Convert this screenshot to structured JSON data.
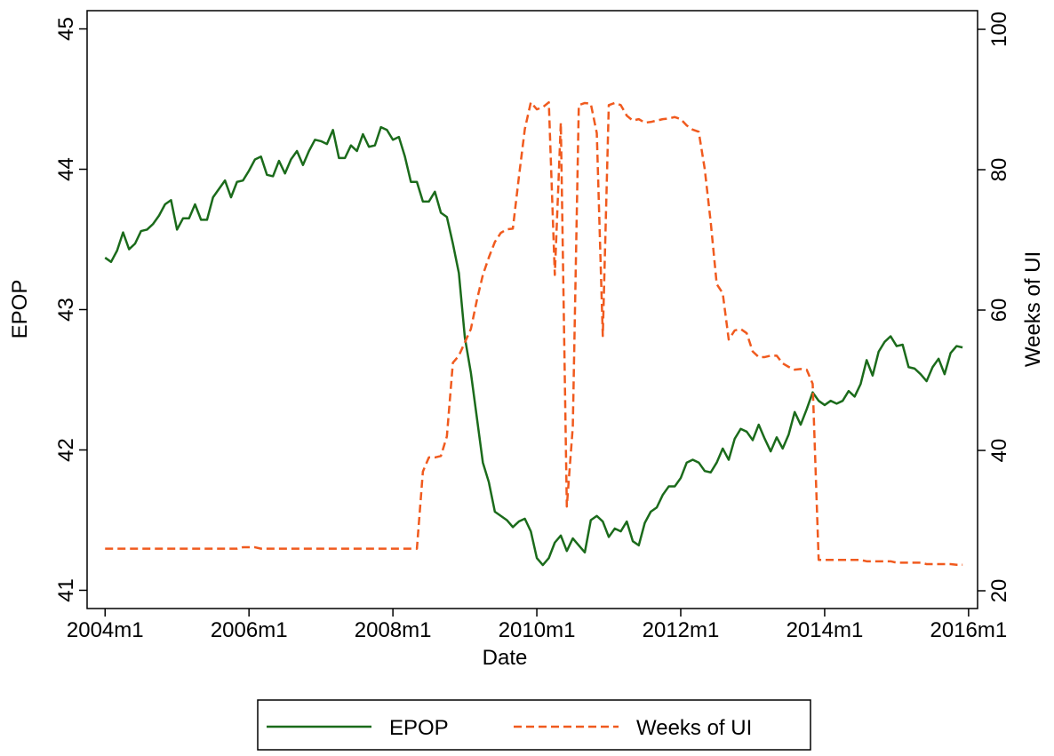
{
  "chart_data": {
    "type": "line",
    "x_label": "Date",
    "y_label": "EPOP",
    "y2_label": "Weeks of UI",
    "x": [
      528,
      529,
      530,
      531,
      532,
      533,
      534,
      535,
      536,
      537,
      538,
      539,
      540,
      541,
      542,
      543,
      544,
      545,
      546,
      547,
      548,
      549,
      550,
      551,
      552,
      553,
      554,
      555,
      556,
      557,
      558,
      559,
      560,
      561,
      562,
      563,
      564,
      565,
      566,
      567,
      568,
      569,
      570,
      571,
      572,
      573,
      574,
      575,
      576,
      577,
      578,
      579,
      580,
      581,
      582,
      583,
      584,
      585,
      586,
      587,
      588,
      589,
      590,
      591,
      592,
      593,
      594,
      595,
      596,
      597,
      598,
      599,
      600,
      601,
      602,
      603,
      604,
      605,
      606,
      607,
      608,
      609,
      610,
      611,
      612,
      613,
      614,
      615,
      616,
      617,
      618,
      619,
      620,
      621,
      622,
      623,
      624,
      625,
      626,
      627,
      628,
      629,
      630,
      631,
      632,
      633,
      634,
      635,
      636,
      637,
      638,
      639,
      640,
      641,
      642,
      643,
      644,
      645,
      646,
      647,
      648,
      649,
      650,
      651,
      652,
      653,
      654,
      655,
      656,
      657,
      658,
      659,
      660,
      661,
      662,
      663,
      664,
      665,
      666,
      667,
      668,
      669,
      670,
      671
    ],
    "series": [
      {
        "name": "EPOP",
        "color": "#1b6b1b",
        "dash": false,
        "axis": "y",
        "values": [
          43.37,
          43.34,
          43.42,
          43.55,
          43.43,
          43.47,
          43.56,
          43.57,
          43.61,
          43.67,
          43.75,
          43.78,
          43.57,
          43.65,
          43.65,
          43.75,
          43.64,
          43.64,
          43.8,
          43.86,
          43.92,
          43.8,
          43.91,
          43.92,
          43.99,
          44.07,
          44.09,
          43.96,
          43.95,
          44.06,
          43.97,
          44.07,
          44.13,
          44.03,
          44.13,
          44.21,
          44.2,
          44.18,
          44.28,
          44.08,
          44.08,
          44.17,
          44.13,
          44.25,
          44.16,
          44.17,
          44.3,
          44.28,
          44.21,
          44.23,
          44.09,
          43.91,
          43.91,
          43.77,
          43.77,
          43.84,
          43.69,
          43.66,
          43.47,
          43.26,
          42.8,
          42.55,
          42.23,
          41.91,
          41.77,
          41.56,
          41.53,
          41.5,
          41.45,
          41.49,
          41.51,
          41.42,
          41.23,
          41.18,
          41.23,
          41.34,
          41.39,
          41.28,
          41.37,
          41.32,
          41.27,
          41.5,
          41.53,
          41.49,
          41.38,
          41.44,
          41.42,
          41.49,
          41.35,
          41.32,
          41.48,
          41.56,
          41.59,
          41.68,
          41.74,
          41.74,
          41.8,
          41.91,
          41.93,
          41.91,
          41.85,
          41.84,
          41.91,
          42.01,
          41.93,
          42.08,
          42.15,
          42.13,
          42.07,
          42.18,
          42.08,
          41.99,
          42.09,
          42.01,
          42.11,
          42.27,
          42.18,
          42.29,
          42.41,
          42.35,
          42.32,
          42.35,
          42.33,
          42.35,
          42.42,
          42.38,
          42.47,
          42.64,
          42.53,
          42.7,
          42.77,
          42.81,
          42.74,
          42.75,
          42.59,
          42.58,
          42.54,
          42.49,
          42.59,
          42.65,
          42.54,
          42.69,
          42.74,
          42.73
        ]
      },
      {
        "name": "Weeks of UI",
        "color": "#f05a1e",
        "dash": true,
        "axis": "y2",
        "values": [
          26,
          26,
          26,
          26,
          26,
          26,
          26,
          26,
          26,
          26,
          26,
          26,
          26,
          26,
          26,
          26,
          26,
          26,
          26,
          26,
          26,
          26,
          26,
          26.2,
          26.2,
          26.2,
          26,
          26,
          26,
          26,
          26,
          26,
          26,
          26,
          26,
          26,
          26,
          26,
          26,
          26,
          26,
          26,
          26,
          26,
          26,
          26,
          26,
          26,
          26,
          26,
          26,
          26,
          26,
          37,
          39,
          39,
          39.2,
          42,
          52.5,
          53.5,
          55.4,
          57.3,
          61.4,
          65,
          67.5,
          69.7,
          71,
          71.5,
          71.6,
          78.9,
          85.8,
          89.6,
          88.6,
          88.9,
          89.6,
          65,
          86.7,
          32,
          43.4,
          89.2,
          89.5,
          89.4,
          85.2,
          56.3,
          89.2,
          89.5,
          89.2,
          87.7,
          87,
          87.2,
          86.7,
          86.8,
          87,
          87.2,
          87.3,
          87.5,
          87.2,
          86.3,
          85.7,
          85.4,
          80.1,
          72.5,
          63.7,
          62.4,
          55.8,
          57.1,
          57.3,
          56.7,
          54.1,
          53.3,
          53.3,
          53.5,
          53.5,
          52.4,
          51.9,
          51.5,
          51.6,
          51.5,
          49.5,
          24.4,
          24.4,
          24.4,
          24.4,
          24.4,
          24.4,
          24.4,
          24.4,
          24.2,
          24.2,
          24.2,
          24.2,
          24.2,
          24,
          24,
          24,
          24,
          24,
          23.8,
          23.8,
          23.8,
          23.8,
          23.8,
          23.7,
          23.7
        ]
      }
    ],
    "xlim": [
      525,
      673.5
    ],
    "xticks": [
      {
        "value": 528,
        "label": "2004m1"
      },
      {
        "value": 552,
        "label": "2006m1"
      },
      {
        "value": 576,
        "label": "2008m1"
      },
      {
        "value": 600,
        "label": "2010m1"
      },
      {
        "value": 624,
        "label": "2012m1"
      },
      {
        "value": 648,
        "label": "2014m1"
      },
      {
        "value": 672,
        "label": "2016m1"
      }
    ],
    "ylim": [
      40.87,
      45.13
    ],
    "yticks": [
      41,
      42,
      43,
      44,
      45
    ],
    "y2lim": [
      17.47,
      102.66
    ],
    "y2ticks": [
      20,
      40,
      60,
      80,
      100
    ],
    "grid": false,
    "legend": "bottom"
  }
}
